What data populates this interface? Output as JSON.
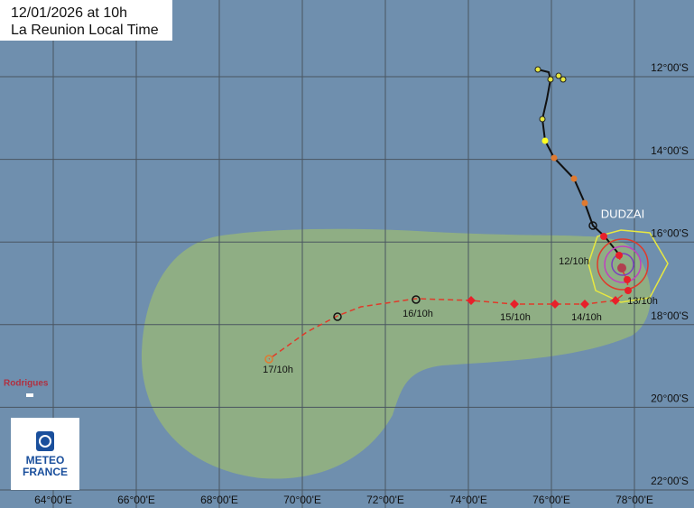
{
  "header": {
    "date": "12/01/2026 at 10h",
    "timezone": "La Reunion Local Time"
  },
  "longitude_labels": [
    "64°00'E",
    "66°00'E",
    "68°00'E",
    "70°00'E",
    "72°00'E",
    "74°00'E",
    "76°00'E",
    "78°00'E"
  ],
  "latitude_labels": [
    "12°00'S",
    "14°00'S",
    "16°00'S",
    "18°00'S",
    "20°00'S",
    "22°00'S"
  ],
  "storm": {
    "name": "DUDZAI"
  },
  "forecast_labels": [
    "12/10h",
    "13/10h",
    "14/10h",
    "15/10h",
    "16/10h",
    "17/10h"
  ],
  "place": "Rodrigues",
  "logo": {
    "line1": "METEO",
    "line2": "FRANCE"
  }
}
